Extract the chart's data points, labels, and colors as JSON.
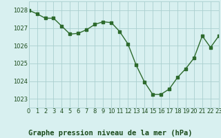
{
  "x": [
    0,
    1,
    2,
    3,
    4,
    5,
    6,
    7,
    8,
    9,
    10,
    11,
    12,
    13,
    14,
    15,
    16,
    17,
    18,
    19,
    20,
    21,
    22,
    23
  ],
  "y": [
    1028.0,
    1027.8,
    1027.55,
    1027.55,
    1027.1,
    1026.65,
    1026.7,
    1026.9,
    1027.2,
    1027.35,
    1027.3,
    1026.8,
    1026.1,
    1024.9,
    1023.95,
    1023.25,
    1023.25,
    1023.55,
    1024.2,
    1024.7,
    1025.3,
    1026.55,
    1025.9,
    1026.55
  ],
  "line_color": "#2d6a2d",
  "marker": "s",
  "markersize": 2.5,
  "linewidth": 1.0,
  "bg_color": "#d8f0f0",
  "grid_color": "#aacfcf",
  "caption": "Graphe pression niveau de la mer (hPa)",
  "xlim": [
    0,
    23
  ],
  "ylim": [
    1022.5,
    1028.5
  ],
  "yticks": [
    1023,
    1024,
    1025,
    1026,
    1027,
    1028
  ],
  "xticks": [
    0,
    1,
    2,
    3,
    4,
    5,
    6,
    7,
    8,
    9,
    10,
    11,
    12,
    13,
    14,
    15,
    16,
    17,
    18,
    19,
    20,
    21,
    22,
    23
  ],
  "caption_fontsize": 7.5,
  "tick_fontsize": 6.0,
  "tick_color": "#1a4a1a",
  "caption_color": "#1a4a1a"
}
